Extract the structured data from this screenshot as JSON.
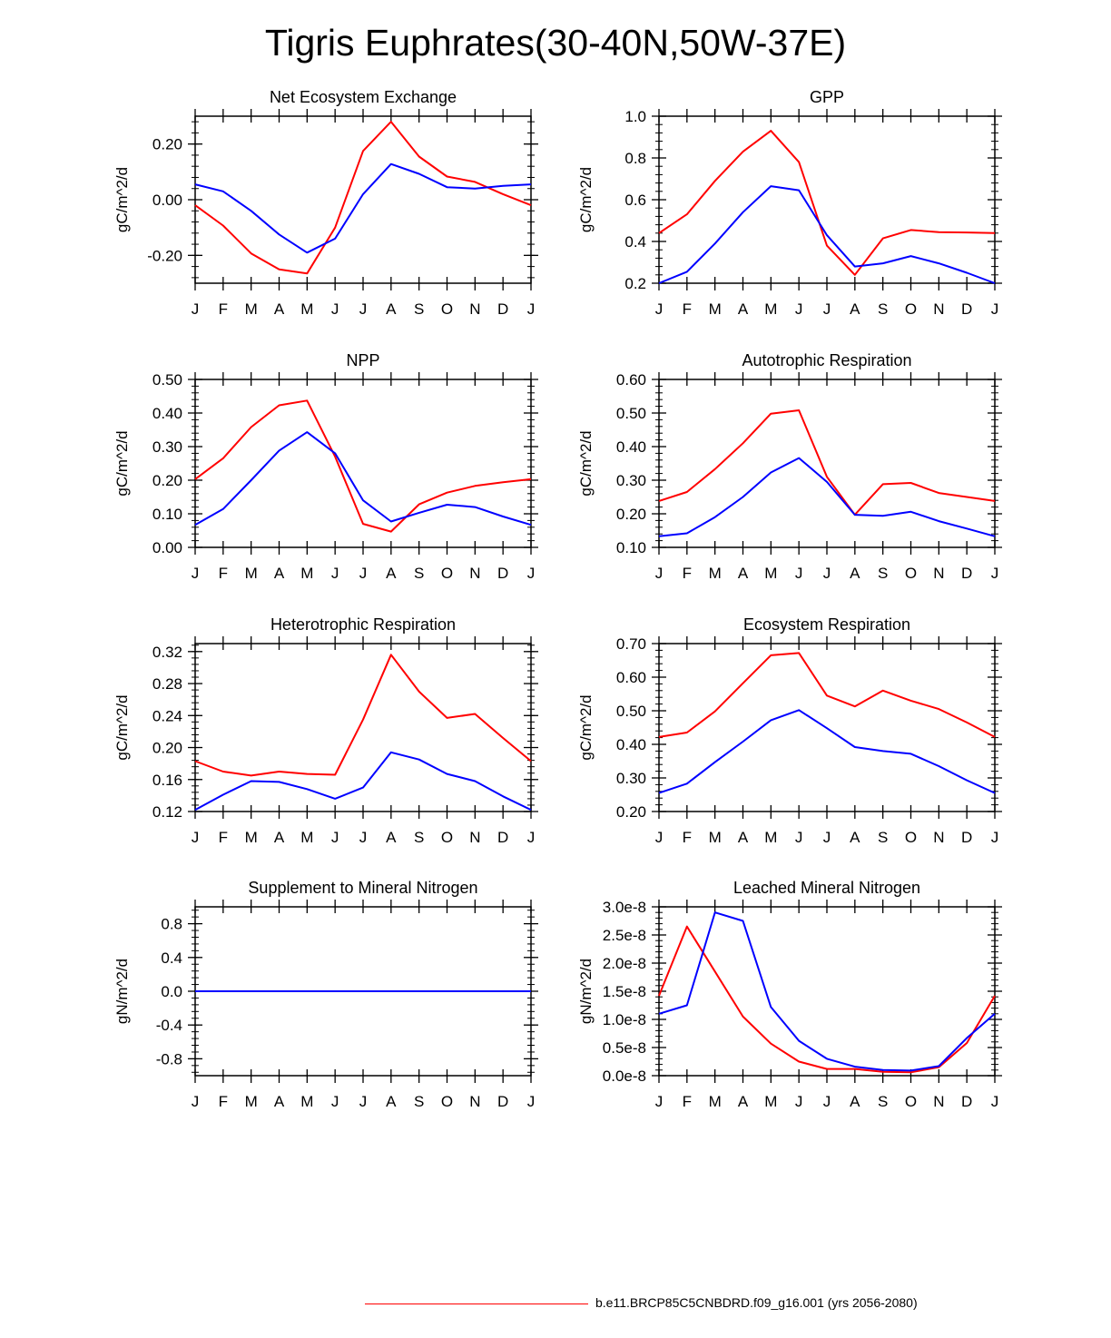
{
  "title": "Tigris Euphrates(30-40N,50W-37E)",
  "colors": {
    "series_a": "#ff0000",
    "series_b": "#0000ff"
  },
  "legend": {
    "label": "b.e11.BRCP85C5CNBDRD.f09_g16.001 (yrs 2056-2080)"
  },
  "chart_data": [
    {
      "type": "line",
      "title": "Net Ecosystem Exchange",
      "ylabel": "gC/m^2/d",
      "x": [
        "J",
        "F",
        "M",
        "A",
        "M",
        "J",
        "J",
        "A",
        "S",
        "O",
        "N",
        "D",
        "J"
      ],
      "ylim": [
        -0.3,
        0.3
      ],
      "yticks": [
        -0.2,
        0.0,
        0.2
      ],
      "ytick_labels": [
        "-0.20",
        "0.00",
        "0.20"
      ],
      "series": [
        {
          "name": "red",
          "color": "#ff0000",
          "values": [
            -0.02,
            -0.093,
            -0.193,
            -0.25,
            -0.265,
            -0.1,
            0.175,
            0.28,
            0.155,
            0.083,
            0.064,
            0.02,
            -0.02
          ]
        },
        {
          "name": "blue",
          "color": "#0000ff",
          "values": [
            0.055,
            0.03,
            -0.04,
            -0.125,
            -0.19,
            -0.14,
            0.02,
            0.128,
            0.093,
            0.045,
            0.04,
            0.05,
            0.055
          ]
        }
      ]
    },
    {
      "type": "line",
      "title": "GPP",
      "ylabel": "gC/m^2/d",
      "x": [
        "J",
        "F",
        "M",
        "A",
        "M",
        "J",
        "J",
        "A",
        "S",
        "O",
        "N",
        "D",
        "J"
      ],
      "ylim": [
        0.2,
        1.0
      ],
      "yticks": [
        0.2,
        0.4,
        0.6,
        0.8,
        1.0
      ],
      "ytick_labels": [
        "0.2",
        "0.4",
        "0.6",
        "0.8",
        "1.0"
      ],
      "series": [
        {
          "name": "red",
          "color": "#ff0000",
          "values": [
            0.44,
            0.53,
            0.69,
            0.83,
            0.93,
            0.78,
            0.38,
            0.24,
            0.415,
            0.455,
            0.445,
            0.443,
            0.44
          ]
        },
        {
          "name": "blue",
          "color": "#0000ff",
          "values": [
            0.2,
            0.255,
            0.39,
            0.54,
            0.665,
            0.645,
            0.43,
            0.28,
            0.295,
            0.33,
            0.295,
            0.25,
            0.2
          ]
        }
      ]
    },
    {
      "type": "line",
      "title": "NPP",
      "ylabel": "gC/m^2/d",
      "x": [
        "J",
        "F",
        "M",
        "A",
        "M",
        "J",
        "J",
        "A",
        "S",
        "O",
        "N",
        "D",
        "J"
      ],
      "ylim": [
        0.0,
        0.5
      ],
      "yticks": [
        0.0,
        0.1,
        0.2,
        0.3,
        0.4,
        0.5
      ],
      "ytick_labels": [
        "0.00",
        "0.10",
        "0.20",
        "0.30",
        "0.40",
        "0.50"
      ],
      "series": [
        {
          "name": "red",
          "color": "#ff0000",
          "values": [
            0.203,
            0.265,
            0.358,
            0.423,
            0.437,
            0.27,
            0.07,
            0.047,
            0.128,
            0.163,
            0.183,
            0.194,
            0.203
          ]
        },
        {
          "name": "blue",
          "color": "#0000ff",
          "values": [
            0.067,
            0.114,
            0.2,
            0.288,
            0.343,
            0.28,
            0.14,
            0.077,
            0.103,
            0.127,
            0.12,
            0.092,
            0.067
          ]
        }
      ]
    },
    {
      "type": "line",
      "title": "Autotrophic Respiration",
      "ylabel": "gC/m^2/d",
      "x": [
        "J",
        "F",
        "M",
        "A",
        "M",
        "J",
        "J",
        "A",
        "S",
        "O",
        "N",
        "D",
        "J"
      ],
      "ylim": [
        0.1,
        0.6
      ],
      "yticks": [
        0.1,
        0.2,
        0.3,
        0.4,
        0.5,
        0.6
      ],
      "ytick_labels": [
        "0.10",
        "0.20",
        "0.30",
        "0.40",
        "0.50",
        "0.60"
      ],
      "series": [
        {
          "name": "red",
          "color": "#ff0000",
          "values": [
            0.238,
            0.265,
            0.333,
            0.41,
            0.498,
            0.508,
            0.31,
            0.197,
            0.288,
            0.292,
            0.262,
            0.25,
            0.238
          ]
        },
        {
          "name": "blue",
          "color": "#0000ff",
          "values": [
            0.133,
            0.142,
            0.19,
            0.25,
            0.323,
            0.366,
            0.295,
            0.197,
            0.194,
            0.206,
            0.178,
            0.156,
            0.133
          ]
        }
      ]
    },
    {
      "type": "line",
      "title": "Heterotrophic Respiration",
      "ylabel": "gC/m^2/d",
      "x": [
        "J",
        "F",
        "M",
        "A",
        "M",
        "J",
        "J",
        "A",
        "S",
        "O",
        "N",
        "D",
        "J"
      ],
      "ylim": [
        0.12,
        0.33
      ],
      "yticks": [
        0.12,
        0.16,
        0.2,
        0.24,
        0.28,
        0.32
      ],
      "ytick_labels": [
        "0.12",
        "0.16",
        "0.20",
        "0.24",
        "0.28",
        "0.32"
      ],
      "series": [
        {
          "name": "red",
          "color": "#ff0000",
          "values": [
            0.183,
            0.17,
            0.165,
            0.17,
            0.167,
            0.166,
            0.235,
            0.316,
            0.27,
            0.237,
            0.242,
            0.212,
            0.183
          ]
        },
        {
          "name": "blue",
          "color": "#0000ff",
          "values": [
            0.122,
            0.141,
            0.158,
            0.157,
            0.148,
            0.136,
            0.15,
            0.194,
            0.185,
            0.167,
            0.158,
            0.139,
            0.122
          ]
        }
      ]
    },
    {
      "type": "line",
      "title": "Ecosystem Respiration",
      "ylabel": "gC/m^2/d",
      "x": [
        "J",
        "F",
        "M",
        "A",
        "M",
        "J",
        "J",
        "A",
        "S",
        "O",
        "N",
        "D",
        "J"
      ],
      "ylim": [
        0.2,
        0.7
      ],
      "yticks": [
        0.2,
        0.3,
        0.4,
        0.5,
        0.6,
        0.7
      ],
      "ytick_labels": [
        "0.20",
        "0.30",
        "0.40",
        "0.50",
        "0.60",
        "0.70"
      ],
      "series": [
        {
          "name": "red",
          "color": "#ff0000",
          "values": [
            0.422,
            0.435,
            0.498,
            0.582,
            0.665,
            0.672,
            0.545,
            0.513,
            0.56,
            0.53,
            0.505,
            0.465,
            0.422
          ]
        },
        {
          "name": "blue",
          "color": "#0000ff",
          "values": [
            0.255,
            0.283,
            0.347,
            0.408,
            0.472,
            0.502,
            0.448,
            0.392,
            0.38,
            0.372,
            0.335,
            0.293,
            0.255
          ]
        }
      ]
    },
    {
      "type": "line",
      "title": "Supplement to Mineral Nitrogen",
      "ylabel": "gN/m^2/d",
      "x": [
        "J",
        "F",
        "M",
        "A",
        "M",
        "J",
        "J",
        "A",
        "S",
        "O",
        "N",
        "D",
        "J"
      ],
      "ylim": [
        -1.0,
        1.0
      ],
      "yticks": [
        -0.8,
        -0.4,
        0.0,
        0.4,
        0.8
      ],
      "ytick_labels": [
        "-0.8",
        "-0.4",
        "0.0",
        "0.4",
        "0.8"
      ],
      "series": [
        {
          "name": "red",
          "color": "#ff0000",
          "values": [
            0,
            0,
            0,
            0,
            0,
            0,
            0,
            0,
            0,
            0,
            0,
            0,
            0
          ]
        },
        {
          "name": "blue",
          "color": "#0000ff",
          "values": [
            0,
            0,
            0,
            0,
            0,
            0,
            0,
            0,
            0,
            0,
            0,
            0,
            0
          ]
        }
      ]
    },
    {
      "type": "line",
      "title": "Leached Mineral Nitrogen",
      "ylabel": "gN/m^2/d",
      "x": [
        "J",
        "F",
        "M",
        "A",
        "M",
        "J",
        "J",
        "A",
        "S",
        "O",
        "N",
        "D",
        "J"
      ],
      "ylim": [
        0.0,
        3e-08
      ],
      "yticks": [
        0.0,
        5e-09,
        1e-08,
        1.5e-08,
        2e-08,
        2.5e-08,
        3e-08
      ],
      "ytick_labels": [
        "0.0e-8",
        "0.5e-8",
        "1.0e-8",
        "1.5e-8",
        "2.0e-8",
        "2.5e-8",
        "3.0e-8"
      ],
      "series": [
        {
          "name": "red",
          "color": "#ff0000",
          "values": [
            1.42e-08,
            2.65e-08,
            1.85e-08,
            1.05e-08,
            5.7e-09,
            2.5e-09,
            1.2e-09,
            1.2e-09,
            7e-10,
            6e-10,
            1.5e-09,
            5.8e-09,
            1.42e-08
          ]
        },
        {
          "name": "blue",
          "color": "#0000ff",
          "values": [
            1.1e-08,
            1.25e-08,
            2.9e-08,
            2.75e-08,
            1.22e-08,
            6.2e-09,
            3e-09,
            1.6e-09,
            1e-09,
            9e-10,
            1.7e-09,
            6.7e-09,
            1.1e-08
          ]
        }
      ]
    }
  ]
}
